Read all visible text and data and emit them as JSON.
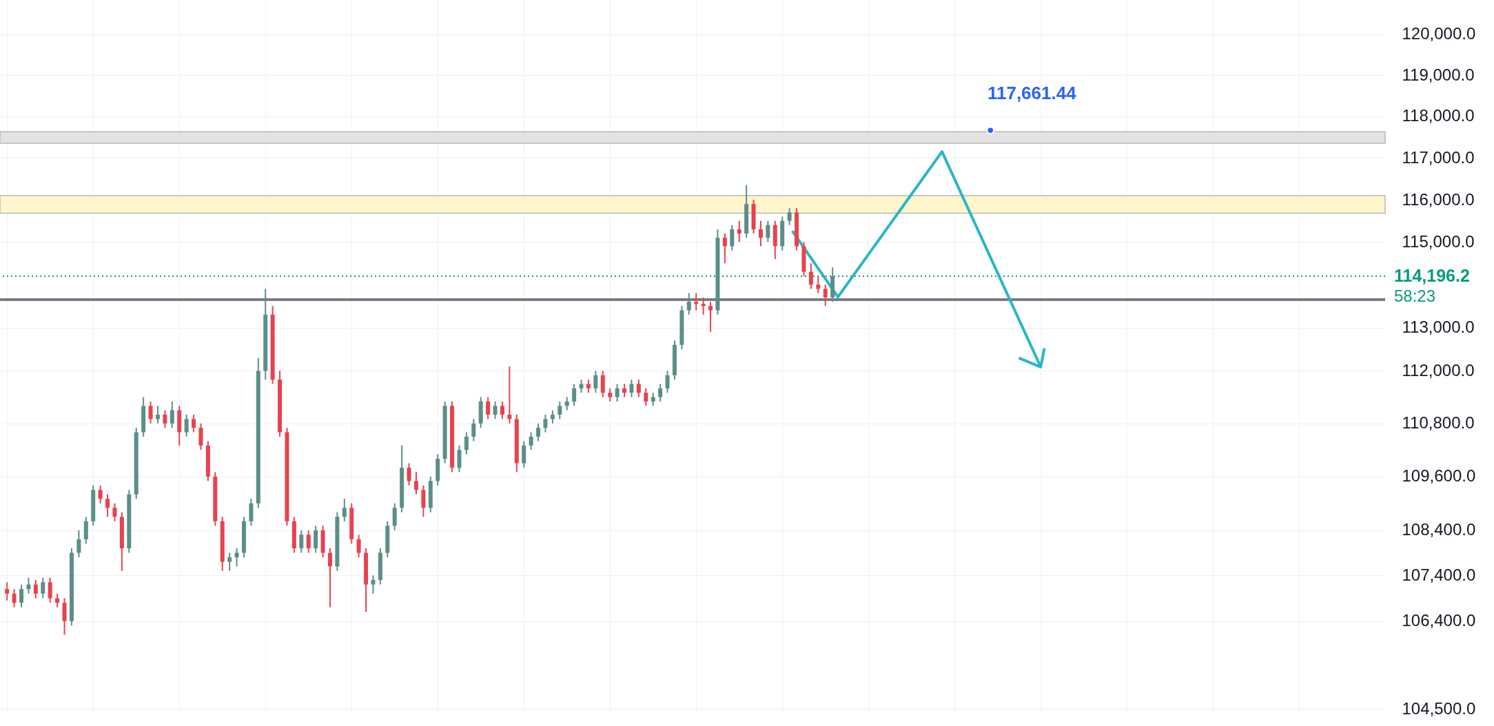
{
  "chart_data": {
    "type": "candlestick",
    "categories": [
      null,
      null,
      null,
      null,
      null,
      null,
      null,
      null,
      null,
      null,
      null,
      null,
      null,
      null,
      null,
      null,
      null,
      null,
      null,
      null,
      null,
      null,
      null,
      null,
      null,
      null,
      null,
      null,
      null,
      null,
      null,
      null,
      null,
      null,
      null,
      null,
      null,
      null,
      null,
      null,
      null,
      null,
      null,
      null,
      null,
      null,
      null,
      null,
      null,
      null,
      null,
      null,
      null,
      null,
      null,
      null,
      null,
      null,
      null,
      null,
      null,
      null,
      null,
      null,
      null,
      null,
      null,
      null,
      null,
      null,
      null,
      null,
      null,
      null,
      null,
      null,
      null,
      null,
      null,
      null,
      null,
      null,
      null,
      null,
      null,
      null,
      null,
      null,
      null,
      null,
      null,
      null,
      null,
      null,
      null,
      null,
      null,
      null,
      null,
      null,
      null,
      null,
      null,
      null,
      null,
      null,
      null,
      null,
      null,
      null,
      null,
      null,
      null,
      null,
      null,
      null,
      null,
      null,
      null,
      null,
      null,
      null,
      null,
      null,
      null,
      null,
      null,
      null,
      null,
      null,
      null,
      null,
      null,
      null,
      null,
      null,
      null,
      null,
      null,
      null,
      null,
      null,
      null,
      null,
      null,
      null,
      null,
      null,
      null,
      null,
      null,
      null,
      null,
      null,
      null,
      null,
      null,
      null,
      null,
      null,
      null,
      null,
      null,
      null,
      null,
      null,
      null,
      null,
      null,
      null,
      null,
      null,
      null,
      null,
      null,
      null,
      null,
      null,
      null,
      null,
      null,
      null,
      null,
      null,
      null,
      null,
      null,
      null,
      null,
      null,
      null,
      null
    ],
    "ohlc": [
      [
        107100,
        107250,
        106850,
        107000
      ],
      [
        107000,
        107100,
        106700,
        106800
      ],
      [
        106800,
        107200,
        106700,
        107100
      ],
      [
        107100,
        107350,
        107000,
        107200
      ],
      [
        107200,
        107300,
        106900,
        107000
      ],
      [
        107000,
        107350,
        106900,
        107250
      ],
      [
        107250,
        107350,
        106800,
        106900
      ],
      [
        106900,
        107000,
        106700,
        106800
      ],
      [
        106800,
        106900,
        106100,
        106400
      ],
      [
        106400,
        108000,
        106300,
        107900
      ],
      [
        107900,
        108400,
        107800,
        108200
      ],
      [
        108200,
        108700,
        108100,
        108600
      ],
      [
        108600,
        109400,
        108500,
        109300
      ],
      [
        109300,
        109400,
        109000,
        109100
      ],
      [
        109100,
        109200,
        108700,
        108900
      ],
      [
        108900,
        109000,
        108600,
        108700
      ],
      [
        108700,
        108800,
        107500,
        108000
      ],
      [
        108000,
        109300,
        107900,
        109200
      ],
      [
        109200,
        110700,
        109100,
        110600
      ],
      [
        110600,
        111400,
        110500,
        111200
      ],
      [
        111200,
        111300,
        110800,
        110900
      ],
      [
        110900,
        111200,
        110800,
        111000
      ],
      [
        111000,
        111100,
        110700,
        110800
      ],
      [
        110800,
        111300,
        110700,
        111100
      ],
      [
        111100,
        111200,
        110300,
        110600
      ],
      [
        110600,
        111000,
        110500,
        110900
      ],
      [
        110900,
        111000,
        110600,
        110700
      ],
      [
        110700,
        110800,
        110200,
        110300
      ],
      [
        110300,
        110400,
        109500,
        109600
      ],
      [
        109600,
        109700,
        108500,
        108600
      ],
      [
        108600,
        108700,
        107500,
        107700
      ],
      [
        107700,
        107900,
        107500,
        107800
      ],
      [
        107800,
        108000,
        107600,
        107900
      ],
      [
        107900,
        108700,
        107800,
        108600
      ],
      [
        108600,
        109100,
        108500,
        109000
      ],
      [
        109000,
        112300,
        108900,
        112000
      ],
      [
        112000,
        113900,
        111800,
        113300
      ],
      [
        113300,
        113500,
        111700,
        111800
      ],
      [
        111800,
        112000,
        110500,
        110600
      ],
      [
        110600,
        110700,
        108500,
        108600
      ],
      [
        108600,
        108700,
        107900,
        108000
      ],
      [
        108000,
        108400,
        107900,
        108300
      ],
      [
        108300,
        108400,
        107900,
        108000
      ],
      [
        108000,
        108500,
        107900,
        108400
      ],
      [
        108400,
        108500,
        107800,
        107900
      ],
      [
        107900,
        108000,
        106700,
        107600
      ],
      [
        107600,
        108800,
        107500,
        108700
      ],
      [
        108700,
        109100,
        108600,
        108900
      ],
      [
        108900,
        109000,
        108100,
        108200
      ],
      [
        108200,
        108300,
        107800,
        107900
      ],
      [
        107900,
        108000,
        106600,
        107200
      ],
      [
        107200,
        107400,
        107000,
        107300
      ],
      [
        107300,
        108000,
        107200,
        107900
      ],
      [
        107900,
        108600,
        107800,
        108500
      ],
      [
        108500,
        109000,
        108400,
        108900
      ],
      [
        108900,
        110300,
        108800,
        109800
      ],
      [
        109800,
        109900,
        109400,
        109500
      ],
      [
        109500,
        109700,
        109200,
        109300
      ],
      [
        109300,
        109400,
        108700,
        108900
      ],
      [
        108900,
        109600,
        108800,
        109500
      ],
      [
        109500,
        110100,
        109400,
        110000
      ],
      [
        110000,
        111300,
        109900,
        111200
      ],
      [
        111200,
        111300,
        109700,
        109800
      ],
      [
        109800,
        110300,
        109700,
        110200
      ],
      [
        110200,
        110600,
        110100,
        110500
      ],
      [
        110500,
        110900,
        110400,
        110800
      ],
      [
        110800,
        111400,
        110700,
        111300
      ],
      [
        111300,
        111400,
        110900,
        111000
      ],
      [
        111000,
        111300,
        110900,
        111200
      ],
      [
        111200,
        111300,
        110900,
        111000
      ],
      [
        111000,
        112100,
        110800,
        110900
      ],
      [
        110900,
        111000,
        109700,
        109900
      ],
      [
        109900,
        110400,
        109800,
        110300
      ],
      [
        110300,
        110600,
        110200,
        110500
      ],
      [
        110500,
        110800,
        110400,
        110700
      ],
      [
        110700,
        111000,
        110600,
        110900
      ],
      [
        110900,
        111100,
        110800,
        111000
      ],
      [
        111000,
        111300,
        110900,
        111200
      ],
      [
        111200,
        111400,
        111100,
        111300
      ],
      [
        111300,
        111700,
        111200,
        111600
      ],
      [
        111600,
        111800,
        111500,
        111700
      ],
      [
        111700,
        111800,
        111500,
        111600
      ],
      [
        111600,
        112000,
        111500,
        111900
      ],
      [
        111900,
        112000,
        111400,
        111500
      ],
      [
        111500,
        111600,
        111300,
        111400
      ],
      [
        111400,
        111700,
        111300,
        111600
      ],
      [
        111600,
        111700,
        111400,
        111500
      ],
      [
        111500,
        111800,
        111400,
        111700
      ],
      [
        111700,
        111800,
        111400,
        111500
      ],
      [
        111500,
        111600,
        111200,
        111300
      ],
      [
        111300,
        111500,
        111200,
        111400
      ],
      [
        111400,
        111700,
        111300,
        111600
      ],
      [
        111600,
        112000,
        111500,
        111900
      ],
      [
        111900,
        112700,
        111800,
        112600
      ],
      [
        112600,
        113500,
        112500,
        113400
      ],
      [
        113400,
        113800,
        113300,
        113600
      ],
      [
        113600,
        113800,
        113400,
        113550
      ],
      [
        113550,
        113700,
        113300,
        113500
      ],
      [
        113500,
        113600,
        112900,
        113400
      ],
      [
        113400,
        115300,
        113300,
        115100
      ],
      [
        115100,
        115200,
        114500,
        114900
      ],
      [
        114900,
        115400,
        114800,
        115300
      ],
      [
        115300,
        115500,
        115000,
        115200
      ],
      [
        115200,
        116350,
        115100,
        115900
      ],
      [
        115900,
        116000,
        115200,
        115300
      ],
      [
        115300,
        115500,
        114900,
        115100
      ],
      [
        115100,
        115500,
        115000,
        115400
      ],
      [
        115400,
        115500,
        114600,
        114900
      ],
      [
        114900,
        115600,
        114800,
        115500
      ],
      [
        115500,
        115800,
        115400,
        115700
      ],
      [
        115700,
        115800,
        114800,
        114900
      ],
      [
        114900,
        115000,
        114200,
        114300
      ],
      [
        114300,
        114500,
        113900,
        114000
      ],
      [
        114000,
        114200,
        113800,
        113900
      ],
      [
        113900,
        114000,
        113500,
        113700
      ],
      [
        113700,
        114400,
        113600,
        114196.2
      ],
      null,
      null,
      null,
      null,
      null,
      null,
      null,
      null,
      null,
      null,
      null,
      null,
      null,
      null,
      null,
      null,
      null,
      null,
      null,
      null,
      null,
      null,
      null,
      null,
      null,
      null,
      null,
      null,
      null,
      null,
      null,
      null,
      null,
      null,
      null,
      null,
      null,
      null,
      null,
      null,
      null,
      null,
      null,
      null,
      null,
      null,
      null,
      null,
      null,
      null,
      null,
      null,
      null,
      null,
      null,
      null,
      null,
      null,
      null,
      null,
      null,
      null,
      null,
      null,
      null,
      null,
      null,
      null,
      null,
      null,
      null,
      null,
      null,
      null,
      null,
      null
    ],
    "ylim": [
      104400,
      120850
    ],
    "yticks": [
      {
        "value": 104500,
        "label": "104,500.0"
      },
      {
        "value": 106400,
        "label": "106,400.0"
      },
      {
        "value": 107400,
        "label": "107,400.0"
      },
      {
        "value": 108400,
        "label": "108,400.0"
      },
      {
        "value": 109600,
        "label": "109,600.0"
      },
      {
        "value": 110800,
        "label": "110,800.0"
      },
      {
        "value": 112000,
        "label": "112,000.0"
      },
      {
        "value": 113000,
        "label": "113,000.0"
      },
      {
        "value": 115000,
        "label": "115,000.0"
      },
      {
        "value": 116000,
        "label": "116,000.0"
      },
      {
        "value": 117000,
        "label": "117,000.0"
      },
      {
        "value": 118000,
        "label": "118,000.0"
      },
      {
        "value": 119000,
        "label": "119,000.0"
      },
      {
        "value": 120000,
        "label": "120,000.0"
      }
    ],
    "log": "y",
    "grid": true,
    "tick_labels": "y",
    "bands": [
      {
        "axis": "y",
        "from": 115680,
        "to": 116100,
        "label": null,
        "color": "#fff6cc"
      },
      {
        "axis": "y",
        "from": 117350,
        "to": 117630,
        "label": null,
        "color": "#e3e3e3"
      }
    ],
    "ref_lines": [
      {
        "axis": "y",
        "value": 113650,
        "label": null,
        "color": "#787b86",
        "line_style": "solid"
      },
      {
        "axis": "y",
        "value": 114196.2,
        "label": "114,196.2",
        "color": "#089981",
        "line_style": "dotted"
      }
    ],
    "annotations": [
      {
        "text": "117,661.44",
        "y": 117661.44
      },
      "58:23"
    ]
  }
}
